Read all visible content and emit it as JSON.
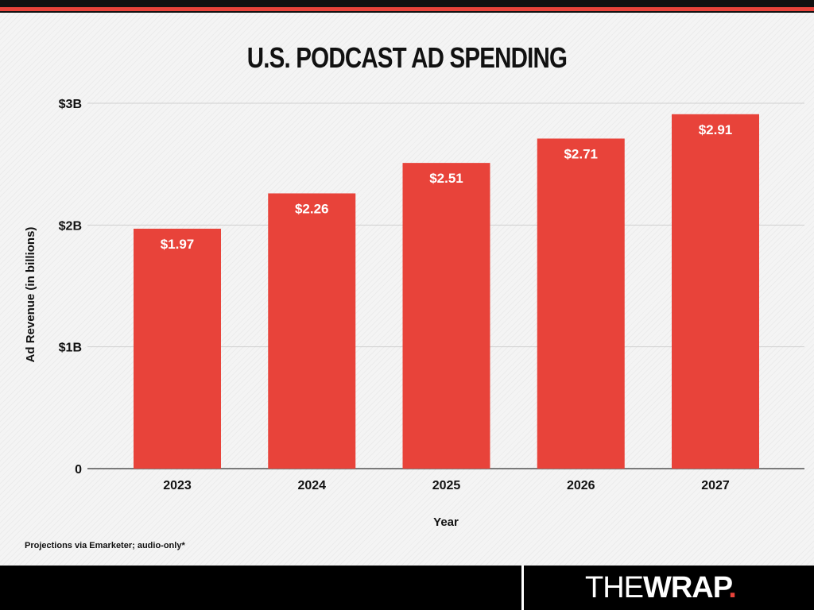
{
  "header": {
    "title": "U.S. PODCAST AD SPENDING"
  },
  "chart_data": {
    "type": "bar",
    "title": "U.S. PODCAST AD SPENDING",
    "xlabel": "Year",
    "ylabel": "Ad Revenue (in billions)",
    "categories": [
      "2023",
      "2024",
      "2025",
      "2026",
      "2027"
    ],
    "values": [
      1.97,
      2.26,
      2.51,
      2.71,
      2.91
    ],
    "data_labels": [
      "$1.97",
      "$2.26",
      "$2.51",
      "$2.71",
      "$2.91"
    ],
    "ylim": [
      0,
      3
    ],
    "yticks": [
      0,
      1,
      2,
      3
    ],
    "ytick_labels": [
      "0",
      "$1B",
      "$2B",
      "$3B"
    ],
    "grid": true,
    "bar_color": "#e8433a"
  },
  "footer": {
    "note": "Projections via Emarketer; audio-only*",
    "brand_the": "THE",
    "brand_wrap": "WRAP",
    "brand_dot": "."
  },
  "colors": {
    "accent": "#e8433a",
    "bar_dark": "#111111"
  }
}
